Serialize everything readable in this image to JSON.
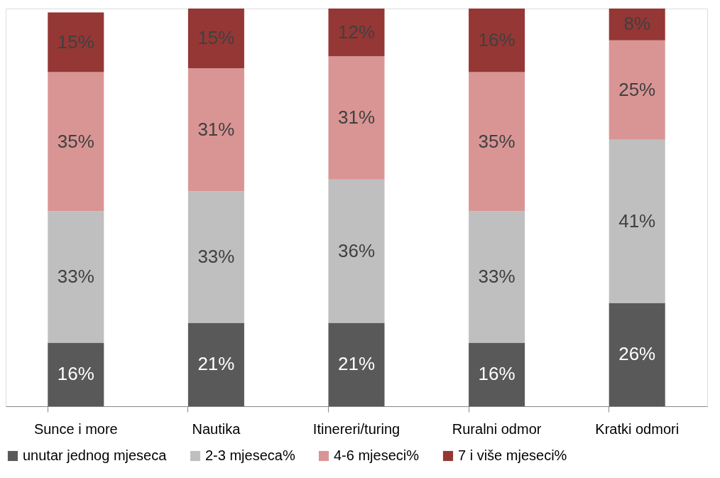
{
  "chart_data": {
    "type": "bar",
    "stacked": true,
    "legend": "bottom",
    "categories": [
      "Sunce i more",
      "Nautika",
      "Itinereri/turing",
      "Ruralni odmor",
      "Kratki odmori"
    ],
    "series": [
      {
        "name": "unutar jednog mjeseca",
        "color": "#595959",
        "values": [
          16,
          21,
          21,
          16,
          26
        ],
        "value_labels": [
          "16%",
          "21%",
          "21%",
          "16%",
          "26%"
        ]
      },
      {
        "name": "2-3 mjeseca%",
        "color": "#bfbfbf",
        "values": [
          33,
          33,
          36,
          33,
          41
        ],
        "value_labels": [
          "33%",
          "33%",
          "36%",
          "33%",
          "41%"
        ]
      },
      {
        "name": "4-6 mjeseci%",
        "color": "#d99594",
        "values": [
          35,
          31,
          31,
          35,
          25
        ],
        "value_labels": [
          "35%",
          "31%",
          "31%",
          "35%",
          "25%"
        ]
      },
      {
        "name": "7 i više mjeseci%",
        "color": "#953735",
        "values": [
          15,
          15,
          12,
          16,
          8
        ],
        "value_labels": [
          "15%",
          "15%",
          "12%",
          "16%",
          "8%"
        ]
      }
    ]
  }
}
